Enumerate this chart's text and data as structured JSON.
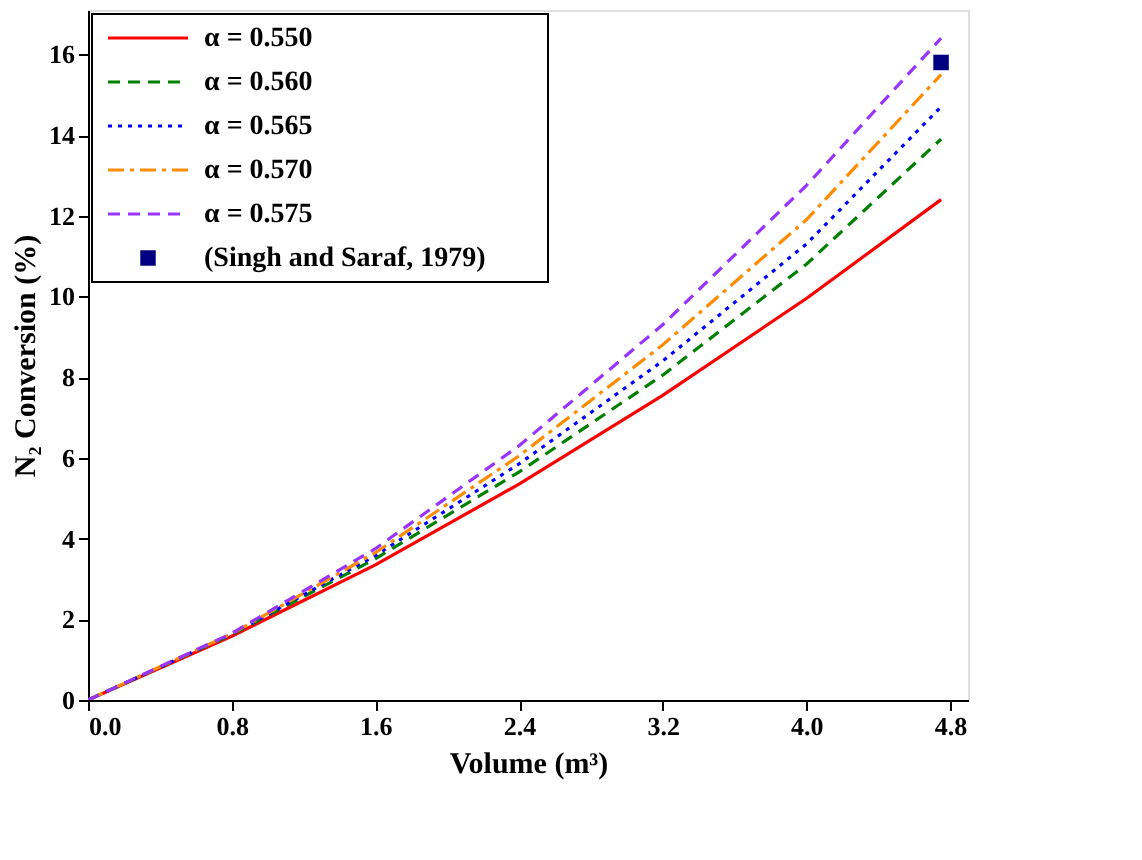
{
  "chart_data": {
    "type": "line",
    "xlabel": "Volume (m³)",
    "ylabel": "N₂ Conversion (%)",
    "xlim": [
      0,
      4.9
    ],
    "xticks": [
      {
        "value": 0,
        "label": "0.0"
      },
      0.8,
      1.6,
      2.4,
      3.2,
      {
        "value": 4,
        "label": "4.0"
      },
      4.8
    ],
    "ylim": [
      0,
      17.1
    ],
    "yticks": [
      0,
      2,
      4,
      6,
      8,
      10,
      12,
      14,
      16
    ],
    "x": [
      0,
      0.8,
      1.6,
      2.4,
      3.2,
      4.0,
      4.75
    ],
    "legend": "top left",
    "grid": false,
    "series": [
      {
        "name": "α = 0.550",
        "color": "#ff0000",
        "line_style": "solid",
        "values": [
          0,
          1.58,
          3.35,
          5.35,
          7.55,
          9.95,
          12.4
        ]
      },
      {
        "name": "α = 0.560",
        "color": "#008000",
        "line_style": "dashed",
        "values": [
          0,
          1.62,
          3.5,
          5.65,
          8.05,
          10.8,
          13.9
        ]
      },
      {
        "name": "α = 0.565",
        "color": "#0000ff",
        "line_style": "dotted",
        "values": [
          0,
          1.63,
          3.58,
          5.85,
          8.4,
          11.3,
          14.7
        ]
      },
      {
        "name": "α = 0.570",
        "color": "#ff8c00",
        "line_style": "dashdot",
        "values": [
          0,
          1.64,
          3.65,
          6.05,
          8.8,
          11.9,
          15.5
        ]
      },
      {
        "name": "α = 0.575",
        "color": "#9933ff",
        "line_style": "dashed",
        "values": [
          0,
          1.65,
          3.75,
          6.3,
          9.3,
          12.75,
          16.4
        ]
      },
      {
        "name": "(Singh and Saraf, 1979)",
        "type": "scatter",
        "marker": "square",
        "color": "#000080",
        "x": [
          4.75
        ],
        "values": [
          15.8
        ]
      }
    ]
  }
}
